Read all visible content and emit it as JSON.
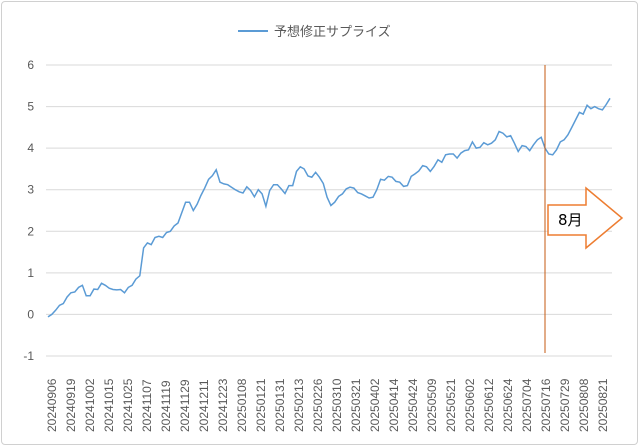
{
  "chart_data": {
    "type": "line",
    "title": "",
    "xlabel": "",
    "ylabel": "",
    "ylim": [
      -1,
      6
    ],
    "yticks": [
      -1,
      0,
      1,
      2,
      3,
      4,
      5,
      6
    ],
    "grid": "horizontal",
    "legend": {
      "position": "top",
      "entries": [
        "予想修正サプライズ"
      ]
    },
    "x_tick_labels": [
      "20240906",
      "20240919",
      "20241002",
      "20241015",
      "20241025",
      "20241107",
      "20241119",
      "20241129",
      "20241211",
      "20241223",
      "20250108",
      "20250121",
      "20250131",
      "20250213",
      "20250226",
      "20250310",
      "20250321",
      "20250402",
      "20250414",
      "20250424",
      "20250509",
      "20250521",
      "20250602",
      "20250612",
      "20250624",
      "20250704",
      "20250716",
      "20250729",
      "20250808",
      "20250821"
    ],
    "series": [
      {
        "name": "予想修正サプライズ",
        "color": "#5b9bd5",
        "values": [
          -0.06,
          0.0,
          0.1,
          0.22,
          0.26,
          0.42,
          0.52,
          0.54,
          0.65,
          0.7,
          0.45,
          0.45,
          0.61,
          0.6,
          0.75,
          0.7,
          0.63,
          0.6,
          0.59,
          0.6,
          0.52,
          0.65,
          0.7,
          0.85,
          0.93,
          1.6,
          1.72,
          1.68,
          1.85,
          1.88,
          1.85,
          1.97,
          2.0,
          2.13,
          2.2,
          2.45,
          2.7,
          2.7,
          2.5,
          2.65,
          2.86,
          3.04,
          3.25,
          3.34,
          3.48,
          3.18,
          3.14,
          3.12,
          3.06,
          3.0,
          2.95,
          2.92,
          3.07,
          2.98,
          2.83,
          3.0,
          2.9,
          2.6,
          2.98,
          3.12,
          3.12,
          3.02,
          2.91,
          3.1,
          3.1,
          3.44,
          3.55,
          3.5,
          3.33,
          3.3,
          3.42,
          3.3,
          3.15,
          2.82,
          2.62,
          2.7,
          2.84,
          2.9,
          3.02,
          3.06,
          3.04,
          2.93,
          2.9,
          2.85,
          2.8,
          2.82,
          3.0,
          3.25,
          3.23,
          3.32,
          3.3,
          3.2,
          3.18,
          3.08,
          3.1,
          3.32,
          3.38,
          3.45,
          3.58,
          3.55,
          3.44,
          3.56,
          3.72,
          3.66,
          3.84,
          3.86,
          3.86,
          3.76,
          3.88,
          3.94,
          3.96,
          4.15,
          4.0,
          4.02,
          4.13,
          4.08,
          4.12,
          4.2,
          4.4,
          4.36,
          4.27,
          4.3,
          4.12,
          3.92,
          4.06,
          4.04,
          3.94,
          4.08,
          4.2,
          4.26,
          4.0,
          3.86,
          3.84,
          3.96,
          4.15,
          4.2,
          4.32,
          4.5,
          4.68,
          4.86,
          4.82,
          5.03,
          4.95,
          5.0,
          4.95,
          4.92,
          5.05,
          5.2
        ]
      }
    ],
    "annotations": [
      {
        "type": "vertical-line",
        "at_tick": "20250716",
        "color": "#c55a11"
      },
      {
        "type": "arrow-right",
        "text": "8月",
        "color": "#ed7d31"
      }
    ]
  }
}
